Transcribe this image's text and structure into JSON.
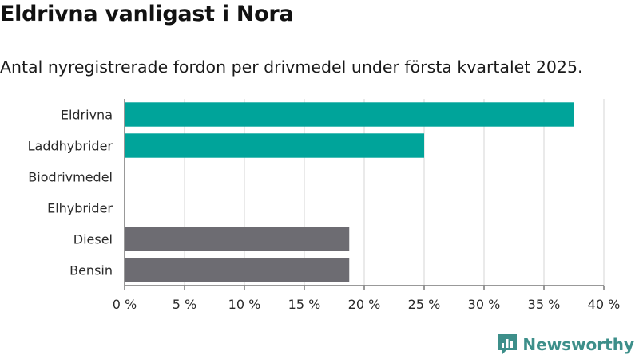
{
  "title": "Eldrivna vanligast i Nora",
  "subtitle": "Antal nyregistrerade fordon per drivmedel under första kvartalet 2025.",
  "brand": {
    "name": "Newsworthy",
    "icon": "newsworthy-logo-icon"
  },
  "colors": {
    "highlight": "#00a49a",
    "other": "#6d6c72",
    "grid": "#dcdcdc",
    "axis": "#333333"
  },
  "chart_data": {
    "type": "bar",
    "orientation": "horizontal",
    "categories": [
      "Eldrivna",
      "Laddhybrider",
      "Biodrivmedel",
      "Elhybrider",
      "Diesel",
      "Bensin"
    ],
    "values": [
      37.5,
      25,
      0,
      0,
      18.75,
      18.75
    ],
    "bar_colors": [
      "#00a49a",
      "#00a49a",
      "#6d6c72",
      "#6d6c72",
      "#6d6c72",
      "#6d6c72"
    ],
    "xlim": [
      0,
      40
    ],
    "xticks": [
      0,
      5,
      10,
      15,
      20,
      25,
      30,
      35,
      40
    ],
    "xtick_labels": [
      "0 %",
      "5 %",
      "10 %",
      "15 %",
      "20 %",
      "25 %",
      "30 %",
      "35 %",
      "40 %"
    ],
    "grid": true,
    "title": "",
    "xlabel": "",
    "ylabel": ""
  }
}
